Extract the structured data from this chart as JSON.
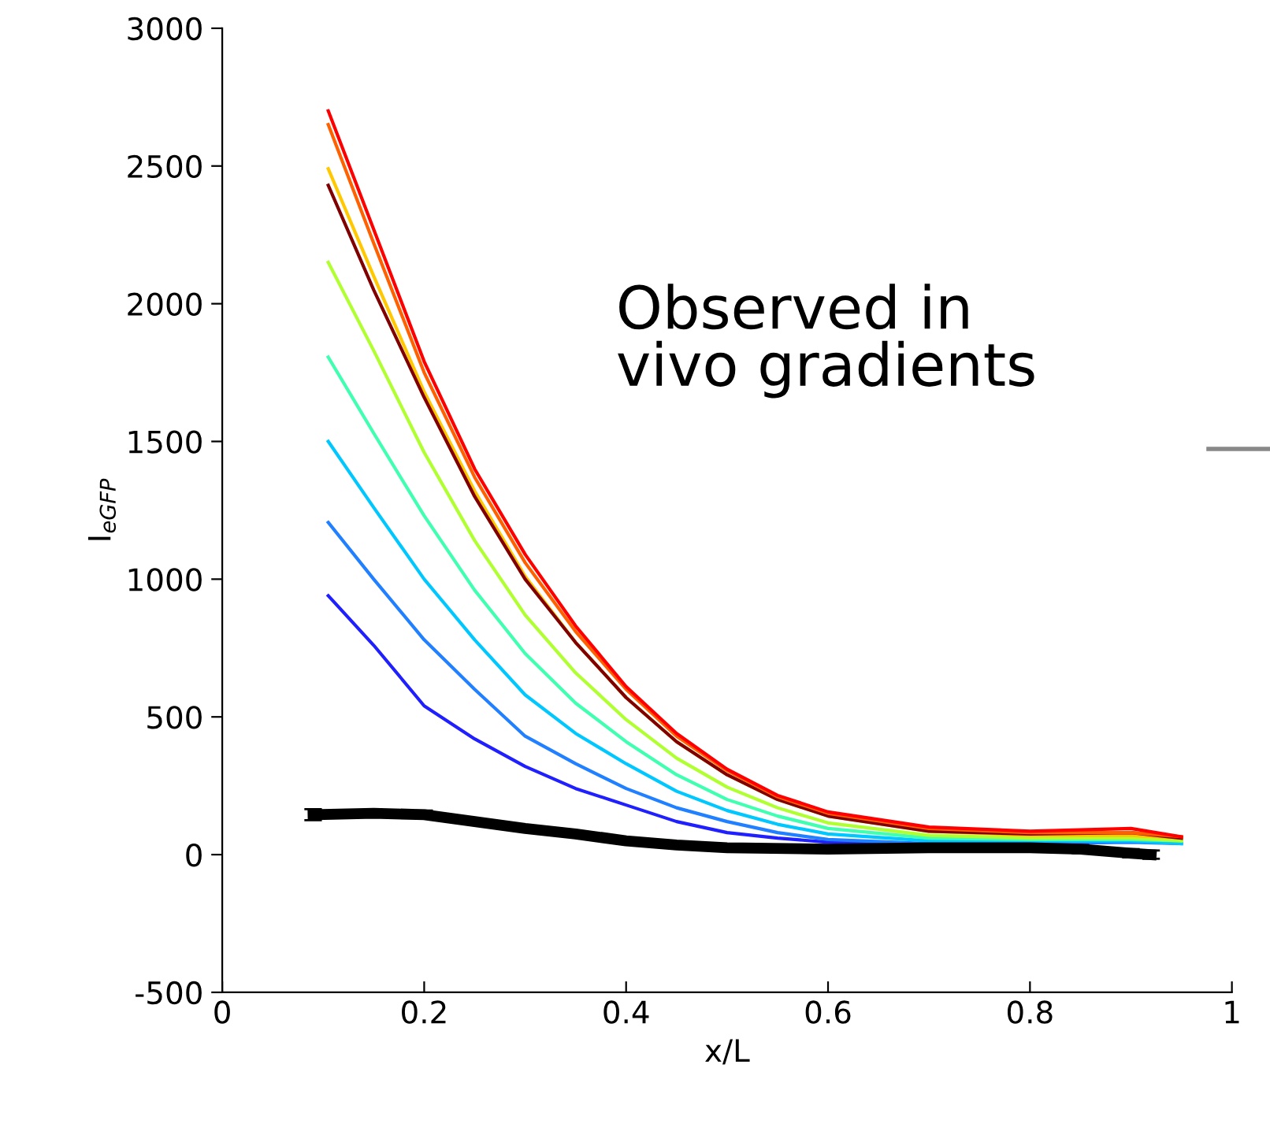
{
  "chart_data": {
    "type": "line",
    "xlabel": "x/L",
    "ylabel": "I$_{eGFP}$",
    "annotations": [
      "Observed in\nvivo gradients"
    ],
    "xlim": [
      0,
      1
    ],
    "ylim": [
      -500,
      3000
    ],
    "xticks": [
      0,
      0.2,
      0.4,
      0.6,
      0.8,
      1
    ],
    "yticks": [
      -500,
      0,
      500,
      1000,
      1500,
      2000,
      2500,
      3000
    ],
    "grid": false,
    "legend": false,
    "marker": "none",
    "line_style": "solid",
    "x": [
      0.105,
      0.15,
      0.2,
      0.25,
      0.3,
      0.35,
      0.4,
      0.45,
      0.5,
      0.55,
      0.6,
      0.7,
      0.8,
      0.9,
      0.95
    ],
    "series": [
      {
        "color": "#2020ff",
        "values": [
          940,
          760,
          540,
          420,
          320,
          240,
          180,
          120,
          80,
          60,
          45,
          35,
          null,
          null,
          null
        ]
      },
      {
        "color": "#2080ff",
        "values": [
          1206,
          1000,
          780,
          600,
          430,
          330,
          240,
          170,
          120,
          80,
          55,
          40,
          40,
          45,
          40
        ]
      },
      {
        "color": "#00c8ff",
        "values": [
          1500,
          1260,
          1000,
          780,
          580,
          440,
          330,
          230,
          160,
          110,
          75,
          50,
          50,
          50,
          40
        ]
      },
      {
        "color": "#40ffb0",
        "values": [
          1806,
          1530,
          1230,
          960,
          730,
          550,
          410,
          290,
          200,
          140,
          95,
          60,
          55,
          55,
          50
        ]
      },
      {
        "color": "#b0ff30",
        "values": [
          2150,
          1830,
          1460,
          1140,
          870,
          660,
          490,
          350,
          245,
          170,
          115,
          70,
          60,
          60,
          50
        ]
      },
      {
        "color": "#ffc800",
        "values": [
          2490,
          2100,
          1680,
          1320,
          1010,
          770,
          570,
          410,
          290,
          200,
          140,
          85,
          70,
          70,
          60
        ]
      },
      {
        "color": "#800000",
        "values": [
          2430,
          2050,
          1660,
          1300,
          1000,
          770,
          570,
          410,
          290,
          200,
          140,
          85,
          75,
          80,
          60
        ]
      },
      {
        "color": "#ff6000",
        "values": [
          2650,
          2220,
          1750,
          1370,
          1060,
          810,
          600,
          430,
          305,
          210,
          150,
          95,
          80,
          80,
          65
        ]
      },
      {
        "color": "#ff0000",
        "values": [
          2700,
          2270,
          1790,
          1400,
          1090,
          830,
          610,
          440,
          310,
          215,
          155,
          100,
          85,
          95,
          65
        ]
      },
      {
        "color": "#000000",
        "x": [
          0.09,
          0.15,
          0.2,
          0.25,
          0.3,
          0.35,
          0.4,
          0.45,
          0.5,
          0.6,
          0.7,
          0.8,
          0.85,
          0.9,
          0.92
        ],
        "values": [
          145,
          150,
          145,
          120,
          95,
          75,
          50,
          35,
          25,
          20,
          25,
          25,
          20,
          5,
          0
        ],
        "errors": [
          20,
          null,
          15,
          null,
          null,
          null,
          null,
          null,
          null,
          null,
          null,
          null,
          15,
          15,
          15
        ]
      }
    ]
  }
}
